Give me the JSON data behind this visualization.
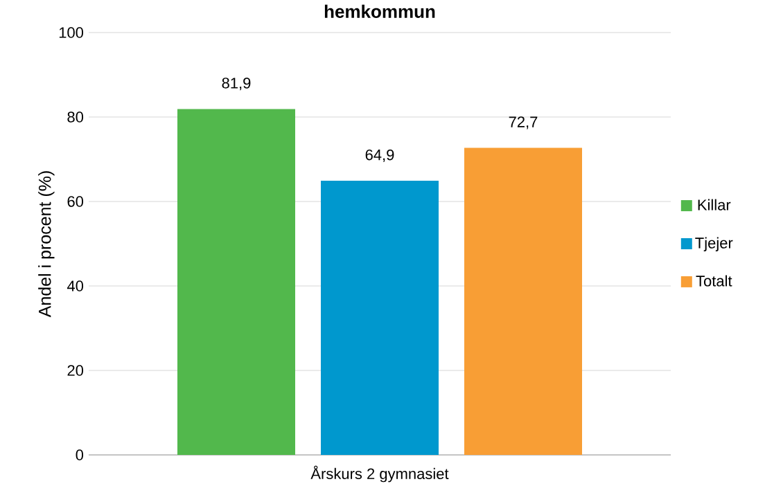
{
  "chart_data": {
    "type": "bar",
    "title": "hemkommun",
    "ylabel": "Andel i procent (%)",
    "categories": [
      "Årskurs 2 gymnasiet"
    ],
    "series": [
      {
        "name": "Killar",
        "color": "#52b84c",
        "values": [
          81.9
        ],
        "value_labels": [
          "81,9"
        ]
      },
      {
        "name": "Tjejer",
        "color": "#0098ce",
        "values": [
          64.9
        ],
        "value_labels": [
          "64,9"
        ]
      },
      {
        "name": "Totalt",
        "color": "#f89e35",
        "values": [
          72.7
        ],
        "value_labels": [
          "72,7"
        ]
      }
    ],
    "ylim": [
      0,
      100
    ],
    "yticks": [
      0,
      20,
      40,
      60,
      80,
      100
    ],
    "grid": "y",
    "legend": "right"
  }
}
